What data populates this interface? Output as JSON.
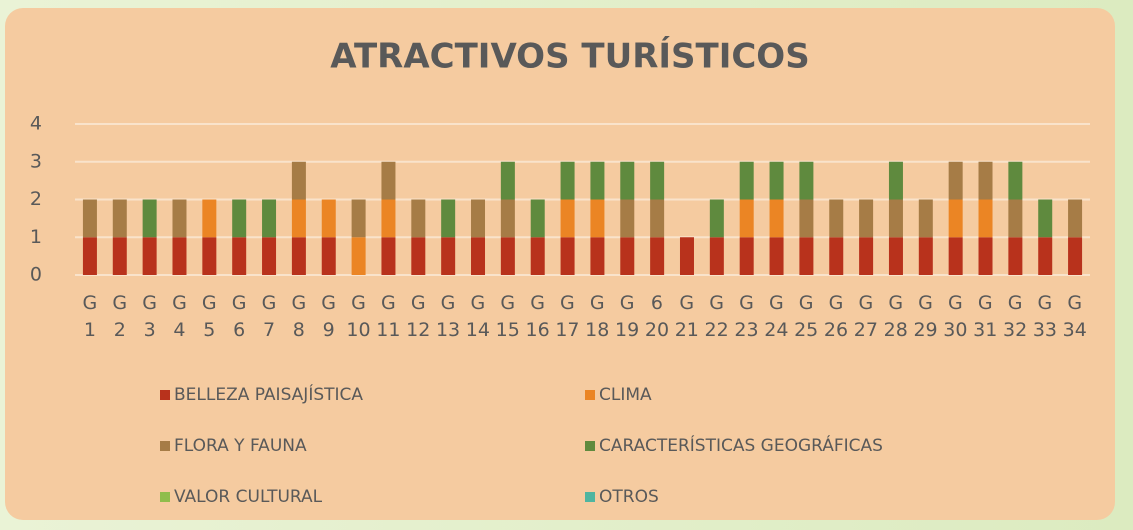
{
  "chart_data": {
    "type": "stacked_bar",
    "title": "ATRACTIVOS TURÍSTICOS",
    "categories": [
      "G 1",
      "G 2",
      "G 3",
      "G 4",
      "G 5",
      "G 6",
      "G 7",
      "G 8",
      "G 9",
      "G 10",
      "G 11",
      "G 12",
      "G 13",
      "G 14",
      "G 15",
      "G 16",
      "G 17",
      "G 18",
      "G 19",
      "6 20",
      "G 21",
      "G 22",
      "G 23",
      "G 24",
      "G 25",
      "G 26",
      "G 27",
      "G 28",
      "G 29",
      "G 30",
      "G 31",
      "G 32",
      "G 33",
      "G 34"
    ],
    "series": [
      {
        "name": "BELLEZA PAISAJÍSTICA",
        "color": "#b8321c",
        "values": [
          1,
          1,
          1,
          1,
          1,
          1,
          1,
          1,
          1,
          0,
          1,
          1,
          1,
          1,
          1,
          1,
          1,
          1,
          1,
          1,
          1,
          1,
          1,
          1,
          1,
          1,
          1,
          1,
          1,
          1,
          1,
          1,
          1,
          1
        ]
      },
      {
        "name": "CLIMA",
        "color": "#eb8524",
        "values": [
          0,
          0,
          0,
          0,
          1,
          0,
          0,
          1,
          1,
          1,
          1,
          0,
          0,
          0,
          0,
          0,
          1,
          1,
          0,
          0,
          0,
          0,
          1,
          1,
          0,
          0,
          0,
          0,
          0,
          1,
          1,
          0,
          0,
          0
        ]
      },
      {
        "name": "FLORA Y FAUNA",
        "color": "#a67c46",
        "values": [
          1,
          1,
          0,
          1,
          0,
          0,
          0,
          1,
          0,
          1,
          1,
          1,
          0,
          1,
          1,
          0,
          0,
          0,
          1,
          1,
          0,
          0,
          0,
          0,
          1,
          1,
          1,
          1,
          1,
          1,
          1,
          1,
          0,
          1
        ]
      },
      {
        "name": "CARACTERÍSTICAS GEOGRÁFICAS",
        "color": "#5f8a3e",
        "values": [
          0,
          0,
          1,
          0,
          0,
          1,
          1,
          0,
          0,
          0,
          0,
          0,
          1,
          0,
          1,
          1,
          1,
          1,
          1,
          1,
          0,
          1,
          1,
          1,
          1,
          0,
          0,
          1,
          0,
          0,
          0,
          1,
          1,
          0
        ]
      },
      {
        "name": "VALOR CULTURAL",
        "color": "#8fbd4c",
        "values": [
          0,
          0,
          0,
          0,
          0,
          0,
          0,
          0,
          0,
          0,
          0,
          0,
          0,
          0,
          0,
          0,
          0,
          0,
          0,
          0,
          0,
          0,
          0,
          0,
          0,
          0,
          0,
          0,
          0,
          0,
          0,
          0,
          0,
          0
        ]
      },
      {
        "name": "OTROS",
        "color": "#4fb5a0",
        "values": [
          0,
          0,
          0,
          0,
          0,
          0,
          0,
          0,
          0,
          0,
          0,
          0,
          0,
          0,
          0,
          0,
          0,
          0,
          0,
          0,
          0,
          0,
          0,
          0,
          0,
          0,
          0,
          0,
          0,
          0,
          0,
          0,
          0,
          0
        ]
      }
    ],
    "ylim": [
      0,
      4
    ],
    "yticks": [
      0,
      1,
      2,
      3,
      4
    ],
    "grid": true
  }
}
